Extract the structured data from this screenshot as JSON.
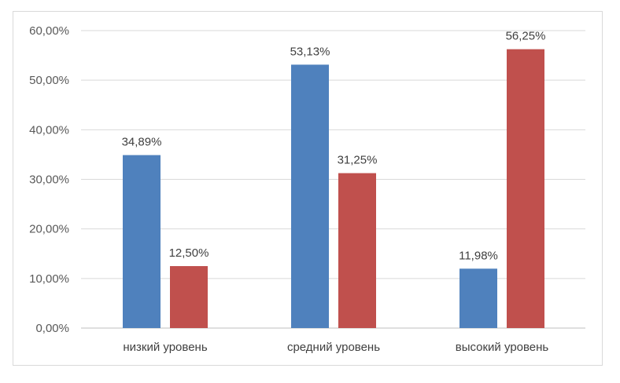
{
  "chart_data": {
    "type": "bar",
    "categories": [
      "низкий уровень",
      "средний уровень",
      "высокий уровень"
    ],
    "series": [
      {
        "values": [
          34.89,
          53.13,
          11.98
        ],
        "labels": [
          "34,89%",
          "53,13%",
          "11,98%"
        ],
        "color": "#4f81bd"
      },
      {
        "values": [
          12.5,
          31.25,
          56.25
        ],
        "labels": [
          "12,50%",
          "31,25%",
          "56,25%"
        ],
        "color": "#c0504d"
      }
    ],
    "yticks": [
      0,
      10,
      20,
      30,
      40,
      50,
      60
    ],
    "ytick_labels": [
      "0,00%",
      "10,00%",
      "20,00%",
      "30,00%",
      "40,00%",
      "50,00%",
      "60,00%"
    ],
    "ylim": [
      0,
      60
    ],
    "grid": true,
    "legend": "none"
  },
  "colors": {
    "gridline": "#d9d9d9",
    "axis": "#bfbfbf"
  }
}
